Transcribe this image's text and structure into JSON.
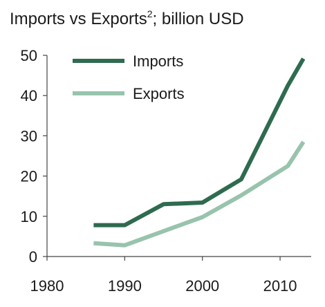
{
  "chart_data": {
    "type": "line",
    "title_main": "Imports vs Exports",
    "title_sup": "2",
    "title_rest": "; billion USD",
    "xlabel": "",
    "ylabel": "",
    "xlim": [
      1980,
      2014
    ],
    "ylim": [
      0,
      50
    ],
    "x_ticks": [
      1980,
      1990,
      2000,
      2010
    ],
    "y_ticks": [
      0,
      10,
      20,
      30,
      40,
      50
    ],
    "grid": false,
    "legend_position": "top-left",
    "series": [
      {
        "name": "Imports",
        "color": "#2e6b4f",
        "x": [
          1986,
          1990,
          1995,
          2000,
          2005,
          2011,
          2013
        ],
        "values": [
          7.8,
          7.8,
          13.0,
          13.4,
          19.2,
          42.5,
          49.2
        ]
      },
      {
        "name": "Exports",
        "color": "#98c3ad",
        "x": [
          1986,
          1990,
          1995,
          2000,
          2005,
          2011,
          2013
        ],
        "values": [
          3.3,
          2.8,
          6.3,
          9.8,
          15.2,
          22.5,
          28.5
        ]
      }
    ]
  }
}
